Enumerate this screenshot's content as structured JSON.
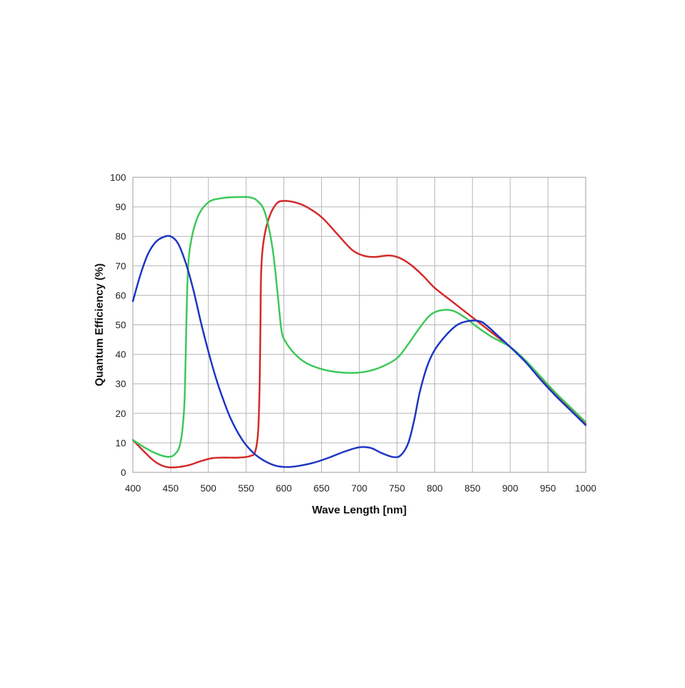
{
  "chart_data": {
    "type": "line",
    "title": "",
    "xlabel": "Wave Length [nm]",
    "ylabel": "Quantum Efficiency (%)",
    "xlim": [
      400,
      1000
    ],
    "ylim": [
      0,
      100
    ],
    "x_ticks": [
      400,
      450,
      500,
      550,
      600,
      650,
      700,
      750,
      800,
      850,
      900,
      950,
      1000
    ],
    "y_ticks": [
      0,
      10,
      20,
      30,
      40,
      50,
      60,
      70,
      80,
      90,
      100
    ],
    "grid": true,
    "legend": "none",
    "series": [
      {
        "color": "#d42a2a",
        "points": [
          [
            400,
            11
          ],
          [
            415,
            7
          ],
          [
            430,
            3.5
          ],
          [
            445,
            1.8
          ],
          [
            460,
            1.8
          ],
          [
            475,
            2.5
          ],
          [
            490,
            3.8
          ],
          [
            505,
            4.8
          ],
          [
            520,
            5
          ],
          [
            540,
            5
          ],
          [
            555,
            5.5
          ],
          [
            562,
            7
          ],
          [
            566,
            14
          ],
          [
            568,
            30
          ],
          [
            569,
            50
          ],
          [
            570,
            68
          ],
          [
            573,
            78
          ],
          [
            580,
            86
          ],
          [
            590,
            91
          ],
          [
            600,
            92
          ],
          [
            615,
            91.5
          ],
          [
            630,
            90
          ],
          [
            650,
            86.5
          ],
          [
            670,
            81
          ],
          [
            690,
            75.5
          ],
          [
            705,
            73.5
          ],
          [
            720,
            73
          ],
          [
            740,
            73.5
          ],
          [
            755,
            72.5
          ],
          [
            770,
            70
          ],
          [
            785,
            66.5
          ],
          [
            800,
            62.5
          ],
          [
            820,
            58.5
          ],
          [
            840,
            54.5
          ],
          [
            860,
            50.5
          ],
          [
            880,
            46.5
          ],
          [
            900,
            42.5
          ],
          [
            920,
            37.5
          ],
          [
            940,
            32
          ],
          [
            960,
            26.5
          ],
          [
            980,
            21.5
          ],
          [
            1000,
            16.5
          ]
        ]
      },
      {
        "color": "#3ec85a",
        "points": [
          [
            400,
            11
          ],
          [
            415,
            8.5
          ],
          [
            430,
            6.5
          ],
          [
            445,
            5.3
          ],
          [
            455,
            6
          ],
          [
            463,
            10
          ],
          [
            468,
            22
          ],
          [
            470,
            40
          ],
          [
            472,
            62
          ],
          [
            475,
            75
          ],
          [
            485,
            86
          ],
          [
            500,
            91.5
          ],
          [
            520,
            93
          ],
          [
            540,
            93.3
          ],
          [
            555,
            93.2
          ],
          [
            565,
            92
          ],
          [
            575,
            88
          ],
          [
            585,
            76
          ],
          [
            592,
            60
          ],
          [
            597,
            48
          ],
          [
            603,
            44
          ],
          [
            615,
            40
          ],
          [
            630,
            37
          ],
          [
            650,
            35
          ],
          [
            670,
            34
          ],
          [
            690,
            33.7
          ],
          [
            710,
            34.2
          ],
          [
            730,
            35.8
          ],
          [
            750,
            38.7
          ],
          [
            765,
            43.5
          ],
          [
            780,
            49
          ],
          [
            795,
            53.5
          ],
          [
            810,
            55
          ],
          [
            825,
            54.7
          ],
          [
            840,
            52.5
          ],
          [
            855,
            49.5
          ],
          [
            875,
            46
          ],
          [
            900,
            42.5
          ],
          [
            920,
            38
          ],
          [
            940,
            32.5
          ],
          [
            960,
            27
          ],
          [
            980,
            22
          ],
          [
            1000,
            17
          ]
        ]
      },
      {
        "color": "#1f36c4",
        "points": [
          [
            400,
            58
          ],
          [
            410,
            67
          ],
          [
            420,
            74
          ],
          [
            430,
            78
          ],
          [
            440,
            79.7
          ],
          [
            450,
            80
          ],
          [
            460,
            77.5
          ],
          [
            470,
            71
          ],
          [
            480,
            62
          ],
          [
            490,
            51
          ],
          [
            500,
            41
          ],
          [
            510,
            32
          ],
          [
            520,
            24.5
          ],
          [
            530,
            18
          ],
          [
            545,
            11
          ],
          [
            560,
            6.5
          ],
          [
            575,
            3.8
          ],
          [
            590,
            2.2
          ],
          [
            605,
            1.8
          ],
          [
            620,
            2.2
          ],
          [
            640,
            3.3
          ],
          [
            660,
            5
          ],
          [
            680,
            7
          ],
          [
            700,
            8.5
          ],
          [
            715,
            8.3
          ],
          [
            730,
            6.5
          ],
          [
            745,
            5.2
          ],
          [
            755,
            5.8
          ],
          [
            765,
            10
          ],
          [
            773,
            18
          ],
          [
            780,
            27
          ],
          [
            790,
            36
          ],
          [
            800,
            41.5
          ],
          [
            815,
            46.5
          ],
          [
            830,
            50
          ],
          [
            845,
            51.3
          ],
          [
            860,
            51.2
          ],
          [
            870,
            49.5
          ],
          [
            885,
            46
          ],
          [
            900,
            42.5
          ],
          [
            920,
            37.5
          ],
          [
            940,
            31.5
          ],
          [
            960,
            26
          ],
          [
            980,
            21
          ],
          [
            1000,
            16
          ]
        ]
      }
    ]
  }
}
